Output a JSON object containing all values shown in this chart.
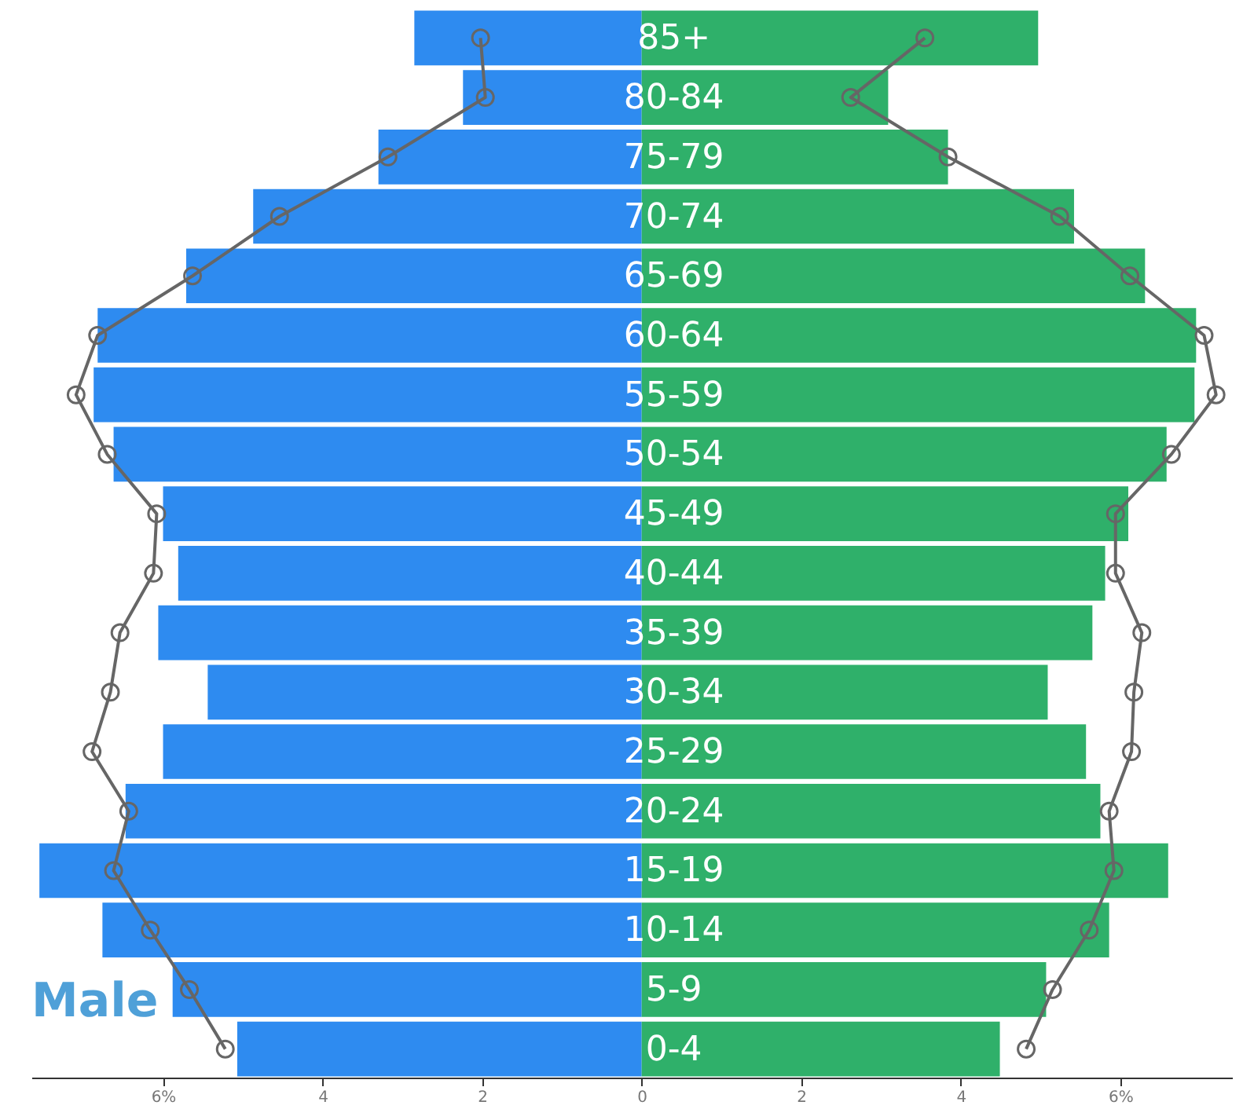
{
  "chart_data": {
    "type": "bar",
    "orientation": "horizontal",
    "categories": [
      "85+",
      "80-84",
      "75-79",
      "70-74",
      "65-69",
      "60-64",
      "55-59",
      "50-54",
      "45-49",
      "40-44",
      "35-39",
      "30-34",
      "25-29",
      "20-24",
      "15-19",
      "10-14",
      "5-9",
      "0-4"
    ],
    "series": [
      {
        "name": "Male",
        "color": "#2e8bf0",
        "values": [
          -2.85,
          -2.24,
          -3.3,
          -4.87,
          -5.71,
          -6.82,
          -6.87,
          -6.62,
          -6.0,
          -5.81,
          -6.06,
          -5.44,
          -6.0,
          -6.47,
          -7.55,
          -6.76,
          -5.88,
          -5.07
        ]
      },
      {
        "color": "#2fb06a",
        "values": [
          4.97,
          3.09,
          3.84,
          5.42,
          6.31,
          6.95,
          6.93,
          6.58,
          6.1,
          5.81,
          5.65,
          5.09,
          5.57,
          5.75,
          6.6,
          5.86,
          5.07,
          4.49
        ]
      },
      {
        "type": "line",
        "color": "#666666",
        "values": [
          -2.02,
          -1.96,
          -3.18,
          -4.54,
          -5.63,
          -6.82,
          -7.09,
          -6.7,
          -6.08,
          -6.12,
          -6.54,
          -6.66,
          -6.89,
          -6.43,
          -6.62,
          -6.16,
          -5.67,
          -5.22
        ]
      },
      {
        "type": "line",
        "color": "#666666",
        "values": [
          3.55,
          2.62,
          3.84,
          5.24,
          6.12,
          7.05,
          7.2,
          6.64,
          5.94,
          5.94,
          6.27,
          6.17,
          6.14,
          5.86,
          5.92,
          5.61,
          5.15,
          4.82
        ]
      }
    ],
    "xlim": [
      -7.65,
      7.4
    ],
    "xticks": [
      {
        "value": -6,
        "label": "6%"
      },
      {
        "value": -4,
        "label": "4"
      },
      {
        "value": -2,
        "label": "2"
      },
      0,
      2,
      4,
      {
        "value": 6,
        "label": "6%"
      }
    ],
    "stacked": true,
    "marker": "circle",
    "line_style": "solid",
    "grid": false
  }
}
